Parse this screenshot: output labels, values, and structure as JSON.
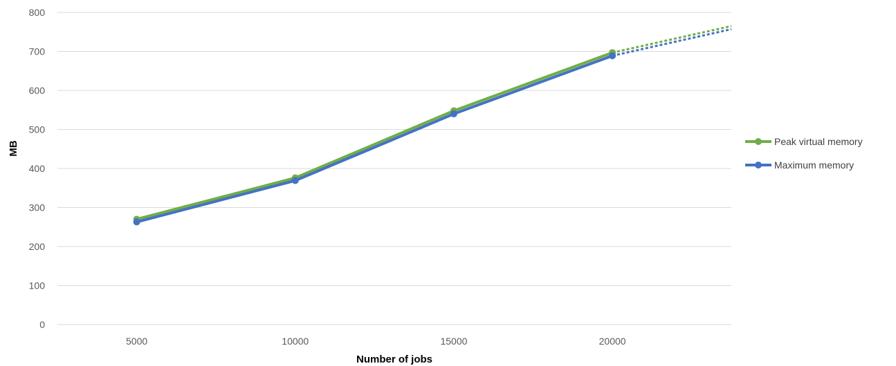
{
  "chart_data": {
    "type": "line",
    "title": "",
    "xlabel": "Number of jobs",
    "ylabel": "MB",
    "x": [
      5000,
      10000,
      15000,
      20000
    ],
    "x_tick_labels": [
      "5000",
      "10000",
      "15000",
      "20000"
    ],
    "y_tick_labels": [
      "0",
      "100",
      "200",
      "300",
      "400",
      "500",
      "600",
      "700",
      "800"
    ],
    "ylim": [
      0,
      800
    ],
    "grid": true,
    "legend_position": "right",
    "series": [
      {
        "name": "Peak virtual memory",
        "color": "#70ad47",
        "values": [
          270,
          376,
          548,
          697
        ],
        "trend_end": 765
      },
      {
        "name": "Maximum memory",
        "color": "#4472c4",
        "values": [
          263,
          369,
          540,
          689
        ],
        "trend_end": 757
      }
    ]
  }
}
